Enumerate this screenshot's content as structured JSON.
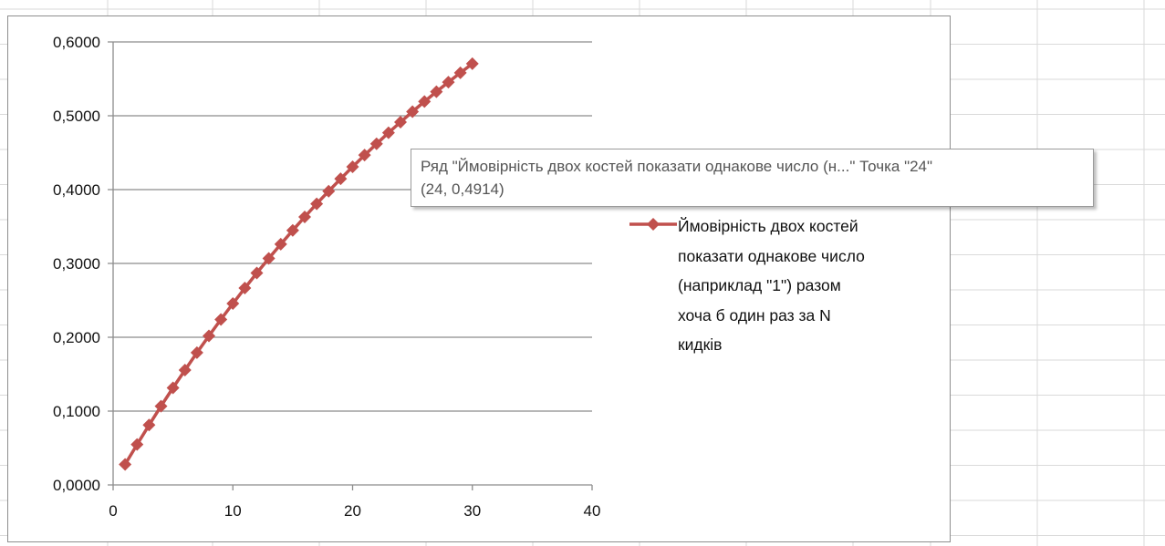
{
  "colors": {
    "series": "#c0504d",
    "series_marker": "#c0504d",
    "gridline": "#8c8c8c",
    "axis": "#8c8c8c",
    "sheet_grid": "#dadada",
    "tooltip_text": "#555555"
  },
  "chart_data": {
    "type": "scatter",
    "x_range": [
      0,
      40
    ],
    "y_range": [
      0,
      0.6
    ],
    "x_ticks": [
      "0",
      "10",
      "20",
      "30",
      "40"
    ],
    "y_ticks": [
      "0,0000",
      "0,1000",
      "0,2000",
      "0,3000",
      "0,4000",
      "0,5000",
      "0,6000"
    ],
    "grid": "horizontal",
    "legend_position": "right",
    "series": [
      {
        "name": "Ймовірність двох костей показати однакове число (наприклад \"1\") разом хоча б один раз за N кидків",
        "marker": "diamond",
        "line": true,
        "x": [
          1,
          2,
          3,
          4,
          5,
          6,
          7,
          8,
          9,
          10,
          11,
          12,
          13,
          14,
          15,
          16,
          17,
          18,
          19,
          20,
          21,
          22,
          23,
          24,
          25,
          26,
          27,
          28,
          29,
          30
        ],
        "y": [
          0.0278,
          0.0548,
          0.0811,
          0.1067,
          0.1315,
          0.1556,
          0.1791,
          0.2019,
          0.2241,
          0.2457,
          0.2666,
          0.287,
          0.3068,
          0.3261,
          0.3448,
          0.363,
          0.3807,
          0.3979,
          0.4146,
          0.4309,
          0.4467,
          0.462,
          0.477,
          0.4914,
          0.5055,
          0.5193,
          0.5326,
          0.5456,
          0.5582,
          0.5705
        ]
      }
    ]
  },
  "legend": {
    "label_lines": [
      "Ймовірність двох костей",
      "показати однакове число",
      "(наприклад \"1\") разом",
      "хоча б один раз за N",
      "кидків"
    ]
  },
  "tooltip": {
    "line1": "Ряд \"Ймовірність двох костей показати однакове число (н...\" Точка \"24\"",
    "line2": "(24, 0,4914)"
  }
}
